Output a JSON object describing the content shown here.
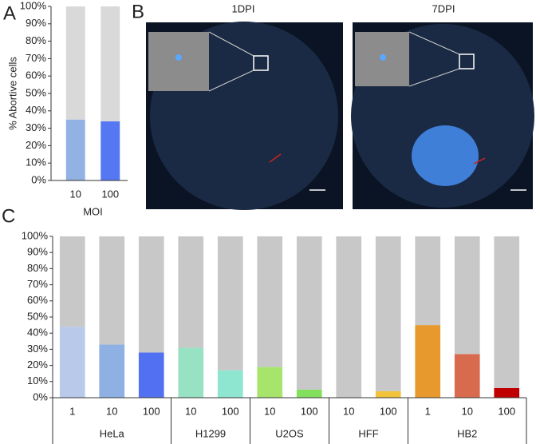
{
  "panel_labels": [
    "A",
    "B",
    "C"
  ],
  "image_titles": [
    "1DPI",
    "7DPI"
  ],
  "chart_data": [
    {
      "type": "stacked-bar",
      "ylabel": "% Abortive cells",
      "xlabel": "MOI",
      "categories": [
        "10",
        "100"
      ],
      "series": [
        {
          "colors": [
            "#92b2e4",
            "#5677f2"
          ],
          "values": [
            35,
            34
          ]
        },
        {
          "color": "#d9d9d9",
          "values": [
            65,
            66
          ]
        }
      ],
      "ylim": [
        0,
        100
      ],
      "yticks": [
        {
          "value": 0,
          "label": "0%"
        },
        {
          "value": 10,
          "label": "10%"
        },
        {
          "value": 20,
          "label": "20%"
        },
        {
          "value": 30,
          "label": "30%"
        },
        {
          "value": 40,
          "label": "40%"
        },
        {
          "value": 50,
          "label": "50%"
        },
        {
          "value": 60,
          "label": "60%"
        },
        {
          "value": 70,
          "label": "70%"
        },
        {
          "value": 80,
          "label": "80%"
        },
        {
          "value": 90,
          "label": "90%"
        },
        {
          "value": 100,
          "label": "100%"
        }
      ]
    },
    {
      "type": "stacked-bar",
      "categories": [
        "1",
        "10",
        "100",
        "10",
        "100",
        "10",
        "100",
        "10",
        "100",
        "1",
        "10",
        "100"
      ],
      "groups": [
        "HeLa",
        "HeLa",
        "HeLa",
        "H1299",
        "H1299",
        "U2OS",
        "U2OS",
        "HFF",
        "HFF",
        "HB2",
        "HB2",
        "HB2"
      ],
      "series": [
        {
          "colors": [
            "#b9c9ea",
            "#8fb0e3",
            "#5271f2",
            "#97e2c2",
            "#8ee6d0",
            "#a6e46c",
            "#83e05c",
            "#f2c63e",
            "#f0c33a",
            "#e8992d",
            "#d86a4e",
            "#c00000"
          ],
          "values": [
            44,
            33,
            28,
            31,
            17,
            19,
            5,
            0,
            4,
            45,
            27,
            6
          ]
        },
        {
          "color": "#c8c8c8",
          "values": [
            56,
            67,
            72,
            69,
            83,
            81,
            95,
            100,
            96,
            55,
            73,
            94
          ]
        }
      ],
      "ylim": [
        0,
        100
      ],
      "yticks": [
        {
          "value": 0,
          "label": "0%"
        },
        {
          "value": 10,
          "label": "10%"
        },
        {
          "value": 20,
          "label": "20%"
        },
        {
          "value": 30,
          "label": "30%"
        },
        {
          "value": 40,
          "label": "40%"
        },
        {
          "value": 50,
          "label": "50%"
        },
        {
          "value": 60,
          "label": "60%"
        },
        {
          "value": 70,
          "label": "70%"
        },
        {
          "value": 80,
          "label": "80%"
        },
        {
          "value": 90,
          "label": "90%"
        },
        {
          "value": 100,
          "label": "100%"
        }
      ]
    }
  ]
}
